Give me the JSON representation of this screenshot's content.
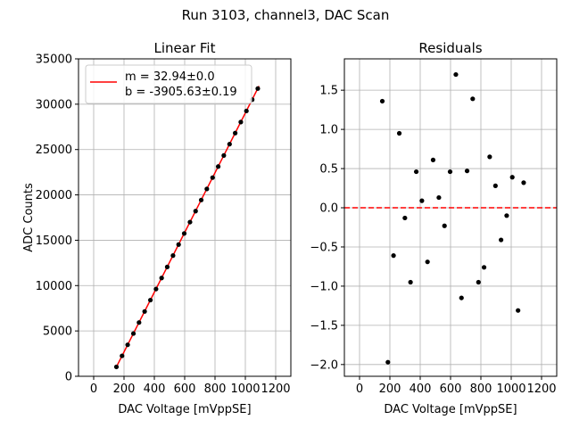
{
  "figure": {
    "suptitle": "Run 3103, channel3, DAC Scan"
  },
  "chart_data": [
    {
      "type": "scatter",
      "title": "Linear Fit",
      "xlabel": "DAC Voltage [mVppSE]",
      "ylabel": "ADC Counts",
      "xlim": [
        -100,
        1300
      ],
      "ylim": [
        0,
        35000
      ],
      "xticks": [
        0,
        200,
        400,
        600,
        800,
        1000,
        1200
      ],
      "yticks": [
        0,
        5000,
        10000,
        15000,
        20000,
        25000,
        30000,
        35000
      ],
      "grid": true,
      "legend": {
        "placement": "upper-left",
        "entries": [
          "m = 32.94±0.0",
          "b = -3905.63±0.19"
        ]
      },
      "fit": {
        "m": 32.94,
        "b": -3905.63,
        "x_range": [
          150,
          1090
        ],
        "color": "#ff0000"
      },
      "x": [
        150,
        187,
        224,
        262,
        299,
        336,
        374,
        411,
        448,
        485,
        523,
        560,
        597,
        635,
        672,
        709,
        746,
        784,
        821,
        858,
        896,
        933,
        970,
        1007,
        1045,
        1082
      ],
      "y": [
        1035,
        2253,
        3473,
        4712,
        5929,
        7148,
        8400,
        9619,
        10837,
        12057,
        13309,
        14527,
        15746,
        16999,
        18215,
        19435,
        20655,
        21906,
        23125,
        24344,
        25596,
        26815,
        28034,
        29253,
        30504,
        31723
      ],
      "marker_color": "#000000"
    },
    {
      "type": "scatter",
      "title": "Residuals",
      "xlabel": "DAC Voltage [mVppSE]",
      "ylabel": "",
      "xlim": [
        -100,
        1300
      ],
      "ylim": [
        -2.15,
        1.9
      ],
      "xticks": [
        0,
        200,
        400,
        600,
        800,
        1000,
        1200
      ],
      "yticks": [
        -2.0,
        -1.5,
        -1.0,
        -0.5,
        0.0,
        0.5,
        1.0,
        1.5
      ],
      "ytick_labels": [
        "−2.0",
        "−1.5",
        "−1.0",
        "−0.5",
        "0.0",
        "0.5",
        "1.0",
        "1.5"
      ],
      "grid": true,
      "reference_line": {
        "y": 0,
        "style": "dashed",
        "color": "#ff0000"
      },
      "x": [
        150,
        187,
        224,
        262,
        299,
        336,
        374,
        411,
        448,
        485,
        523,
        560,
        597,
        635,
        672,
        709,
        746,
        784,
        821,
        858,
        896,
        933,
        970,
        1007,
        1045,
        1082
      ],
      "y": [
        1.36,
        -1.97,
        -0.61,
        0.95,
        -0.13,
        -0.95,
        0.46,
        0.09,
        -0.69,
        0.61,
        0.13,
        -0.23,
        0.46,
        1.7,
        -1.15,
        0.47,
        1.39,
        -0.95,
        -0.76,
        0.65,
        0.28,
        -0.41,
        -0.1,
        0.39,
        -1.31,
        0.32
      ],
      "marker_color": "#000000"
    }
  ]
}
